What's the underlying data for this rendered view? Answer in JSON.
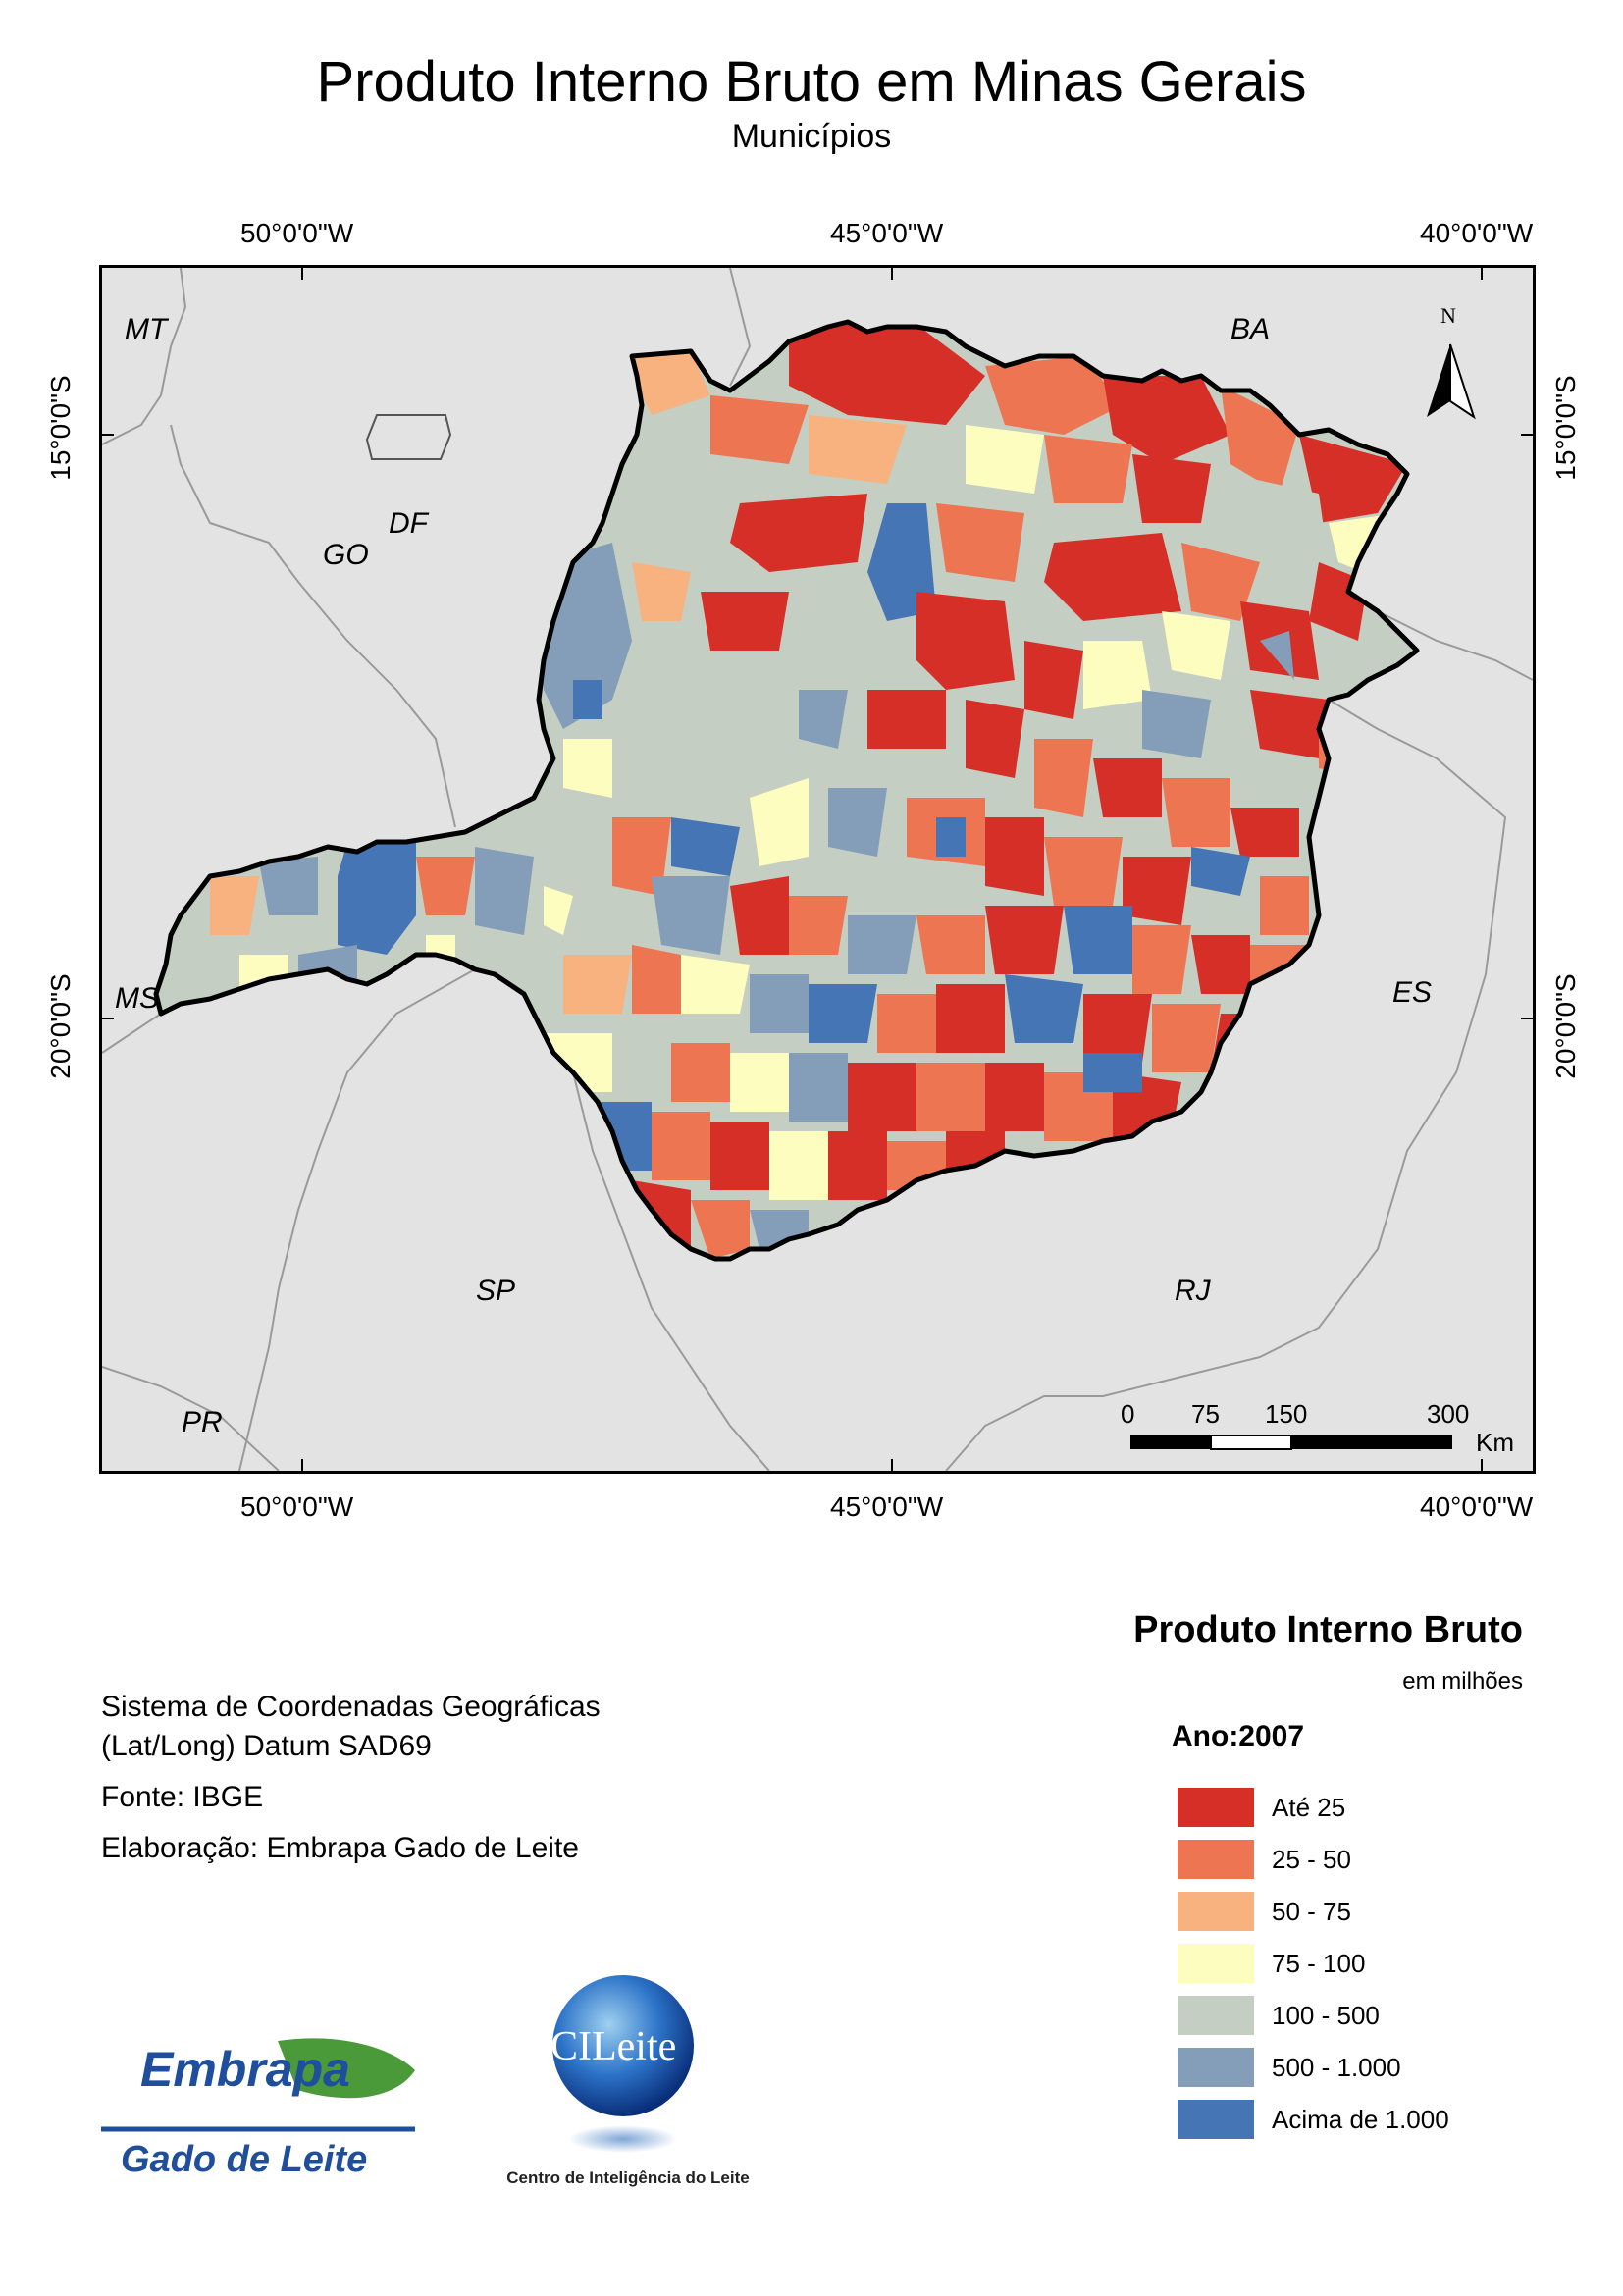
{
  "map": {
    "title": "Produto Interno Bruto em Minas Gerais",
    "subtitle": "Municípios",
    "longitude_labels": [
      "50°0'0\"W",
      "45°0'0\"W",
      "40°0'0\"W"
    ],
    "latitude_labels": [
      "15°0'0\"S",
      "20°0'0\"S"
    ],
    "state_labels": [
      "MT",
      "BA",
      "GO",
      "DF",
      "MS",
      "ES",
      "SP",
      "RJ",
      "PR"
    ],
    "north_arrow_label": "N",
    "scale_bar": {
      "ticks": [
        "0",
        "75",
        "150",
        "300"
      ],
      "unit": "Km"
    }
  },
  "info": {
    "line1": "Sistema de Coordenadas Geográficas",
    "line2": "(Lat/Long) Datum SAD69",
    "source": "Fonte: IBGE",
    "author": "Elaboração: Embrapa Gado de Leite"
  },
  "legend": {
    "title": "Produto Interno Bruto",
    "subtitle": "em milhões",
    "year": "Ano:2007",
    "classes": [
      {
        "label": "Até 25",
        "color": "#d62f27"
      },
      {
        "label": "25 - 50",
        "color": "#ed7551"
      },
      {
        "label": "50 - 75",
        "color": "#f8b27f"
      },
      {
        "label": "75 - 100",
        "color": "#fdfdbf"
      },
      {
        "label": "100 - 500",
        "color": "#c4cec3"
      },
      {
        "label": "500 - 1.000",
        "color": "#849eb9"
      },
      {
        "label": "Acima de 1.000",
        "color": "#4575b5"
      }
    ]
  },
  "logos": {
    "embrapa_top": "Embrapa",
    "embrapa_bottom": "Gado de Leite",
    "cileite_top": "CILeite",
    "cileite_bottom": "Centro de Inteligência do Leite"
  }
}
